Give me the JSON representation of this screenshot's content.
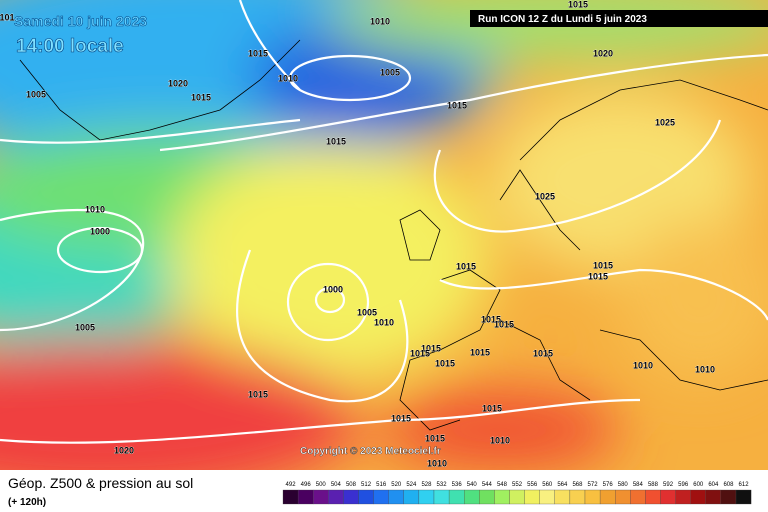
{
  "header": {
    "date": "Samedi 10 juin 2023",
    "time": "14:00 locale",
    "run": "Run ICON 12 Z du Lundi 5 juin 2023",
    "copyright": "Copyright © 2023 Meteociel.fr"
  },
  "footer": {
    "title": "Géop. Z500 & pression au sol",
    "lead": "(+ 120h)"
  },
  "isobar_labels": [
    "101",
    "1015",
    "1010",
    "1015",
    "1010",
    "1005",
    "1020",
    "1015",
    "1005",
    "1015",
    "1020",
    "1025",
    "1015",
    "1010",
    "1000",
    "1025",
    "1015",
    "1015",
    "1015",
    "1000",
    "1005",
    "1010",
    "1005",
    "1015",
    "1015",
    "1015",
    "1015",
    "1015",
    "1015",
    "1015",
    "1010",
    "1010",
    "1015",
    "1015",
    "1015",
    "1010",
    "1015",
    "1020",
    "1010"
  ],
  "legend": {
    "values": [
      492,
      496,
      500,
      504,
      508,
      512,
      516,
      520,
      524,
      528,
      532,
      536,
      540,
      544,
      548,
      552,
      556,
      560,
      564,
      568,
      572,
      576,
      580,
      584,
      588,
      592,
      596,
      600,
      604,
      608,
      612
    ],
    "colors": [
      "#2a0030",
      "#4a0060",
      "#6a108a",
      "#5a20b0",
      "#3a30d0",
      "#2050e0",
      "#2070f0",
      "#2090f0",
      "#20b0f0",
      "#30d0f0",
      "#40e0e0",
      "#40e0b0",
      "#50e080",
      "#70e060",
      "#a0f060",
      "#d0f060",
      "#f0f060",
      "#f8f080",
      "#f8e060",
      "#f8d050",
      "#f8c040",
      "#f0a030",
      "#f09030",
      "#f07030",
      "#f05030",
      "#e03030",
      "#c02020",
      "#a01010",
      "#801010",
      "#501010",
      "#101010"
    ]
  }
}
